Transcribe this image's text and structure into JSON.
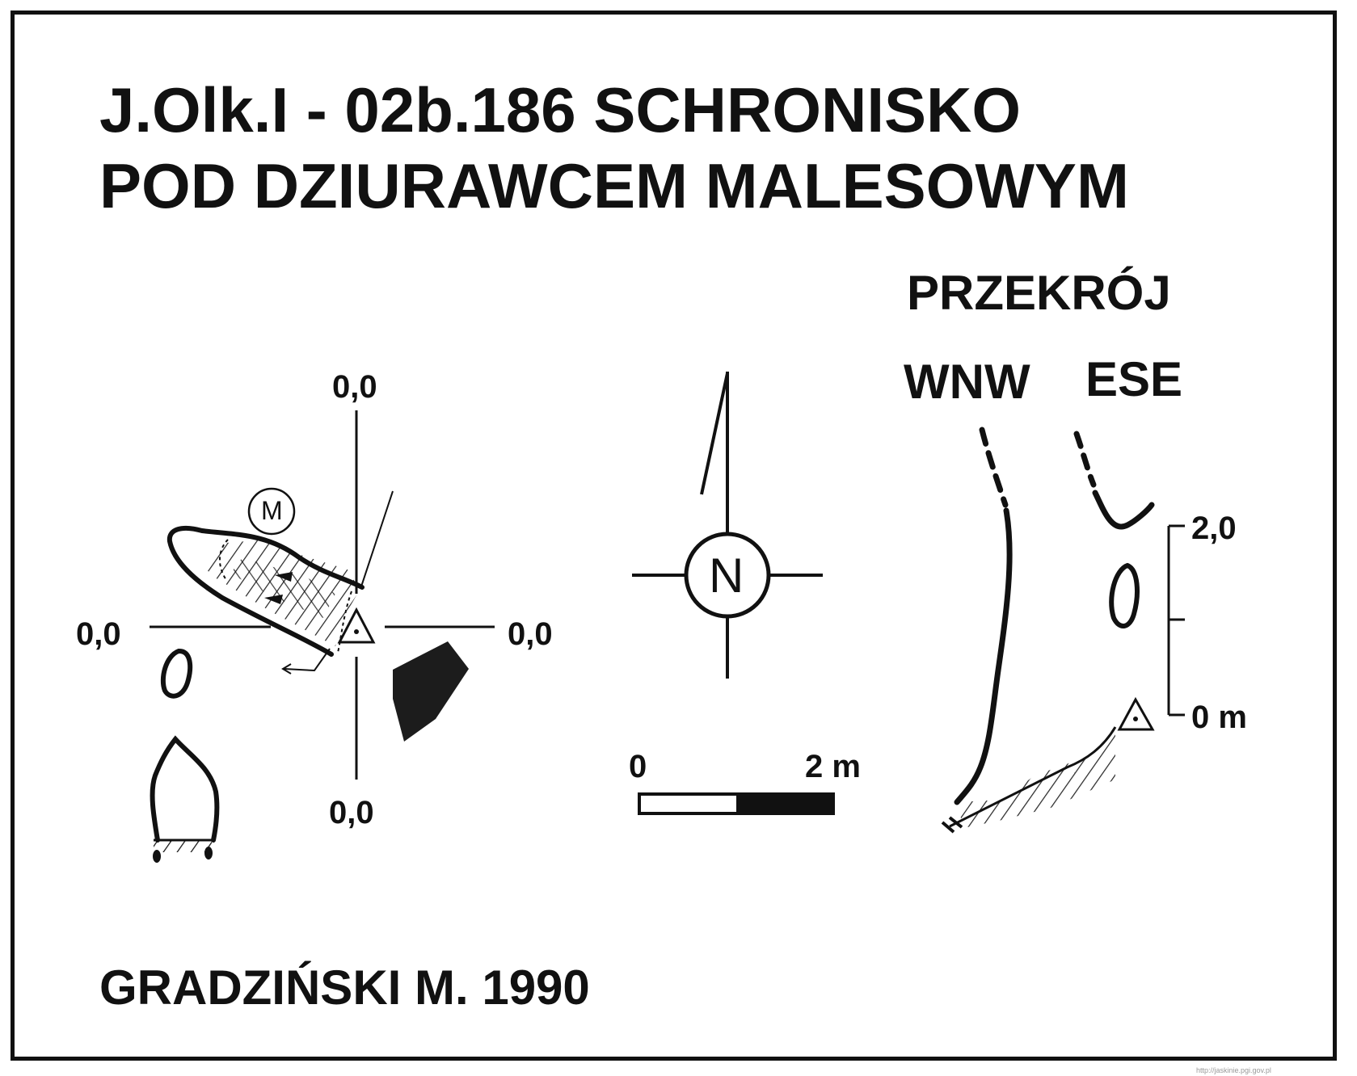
{
  "title": {
    "line1": "J.Olk.I - 02b.186  SCHRONISKO",
    "line2": "POD DZIURAWCEM MALESOWYM"
  },
  "plan": {
    "axis_labels": {
      "top": "0,0",
      "left": "0,0",
      "right": "0,0",
      "bottom": "0,0"
    },
    "marker_label": "M"
  },
  "north_arrow": {
    "label": "N"
  },
  "scale_bar": {
    "start_label": "0",
    "end_label": "2 m"
  },
  "section": {
    "heading": "PRZEKRÓJ",
    "left_direction": "WNW",
    "right_direction": "ESE",
    "vertical_scale": {
      "top_label": "2,0",
      "bottom_label": "0 m"
    }
  },
  "author": "GRADZIŃSKI M. 1990",
  "footer_url": "http://jaskinie.pgi.gov.pl"
}
